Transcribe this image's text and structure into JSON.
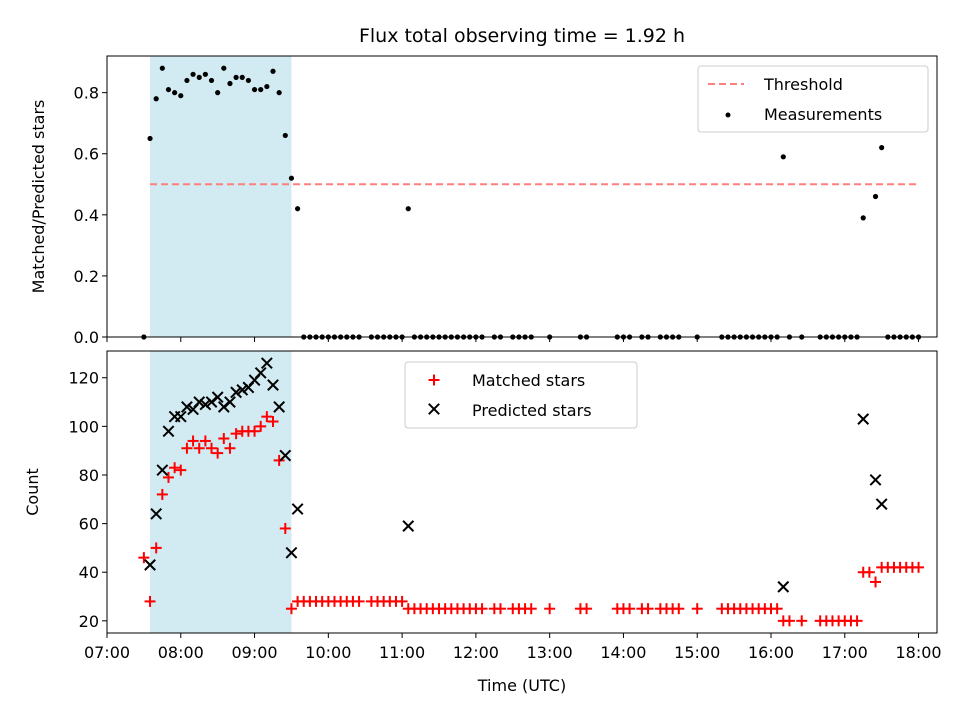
{
  "chart_data": [
    {
      "type": "scatter",
      "title": "Flux total observing time = 1.92 h",
      "ylabel": "Matched/Predicted stars",
      "xlabel": "",
      "xlim": [
        "07:00",
        "18:15"
      ],
      "ylim": [
        0,
        0.92
      ],
      "yticks": [
        0.0,
        0.2,
        0.4,
        0.6,
        0.8
      ],
      "ytick_labels": [
        "0.0",
        "0.2",
        "0.4",
        "0.6",
        "0.8"
      ],
      "legend_position": "top-right",
      "shaded_interval": {
        "start": "07:35",
        "end": "09:30",
        "color": "#add8e6"
      },
      "threshold": {
        "name": "Threshold",
        "value": 0.5,
        "x_start": "07:35",
        "x_end": "18:00",
        "color": "#ff7f7f"
      },
      "series": [
        {
          "name": "Measurements",
          "color": "#000000",
          "points": [
            [
              "07:30",
              0.0
            ],
            [
              "07:35",
              0.65
            ],
            [
              "07:40",
              0.78
            ],
            [
              "07:45",
              0.88
            ],
            [
              "07:50",
              0.81
            ],
            [
              "07:55",
              0.8
            ],
            [
              "08:00",
              0.79
            ],
            [
              "08:05",
              0.84
            ],
            [
              "08:10",
              0.86
            ],
            [
              "08:15",
              0.85
            ],
            [
              "08:20",
              0.86
            ],
            [
              "08:25",
              0.84
            ],
            [
              "08:30",
              0.8
            ],
            [
              "08:35",
              0.88
            ],
            [
              "08:40",
              0.83
            ],
            [
              "08:45",
              0.85
            ],
            [
              "08:50",
              0.85
            ],
            [
              "08:55",
              0.84
            ],
            [
              "09:00",
              0.81
            ],
            [
              "09:05",
              0.81
            ],
            [
              "09:10",
              0.82
            ],
            [
              "09:15",
              0.87
            ],
            [
              "09:20",
              0.8
            ],
            [
              "09:25",
              0.66
            ],
            [
              "09:30",
              0.52
            ],
            [
              "09:35",
              0.42
            ],
            [
              "09:40",
              0.0
            ],
            [
              "09:45",
              0.0
            ],
            [
              "09:50",
              0.0
            ],
            [
              "09:55",
              0.0
            ],
            [
              "10:00",
              0.0
            ],
            [
              "10:05",
              0.0
            ],
            [
              "10:10",
              0.0
            ],
            [
              "10:15",
              0.0
            ],
            [
              "10:20",
              0.0
            ],
            [
              "10:25",
              0.0
            ],
            [
              "10:35",
              0.0
            ],
            [
              "10:40",
              0.0
            ],
            [
              "10:45",
              0.0
            ],
            [
              "10:50",
              0.0
            ],
            [
              "10:55",
              0.0
            ],
            [
              "11:00",
              0.0
            ],
            [
              "11:05",
              0.42
            ],
            [
              "11:10",
              0.0
            ],
            [
              "11:15",
              0.0
            ],
            [
              "11:20",
              0.0
            ],
            [
              "11:25",
              0.0
            ],
            [
              "11:30",
              0.0
            ],
            [
              "11:35",
              0.0
            ],
            [
              "11:40",
              0.0
            ],
            [
              "11:45",
              0.0
            ],
            [
              "11:50",
              0.0
            ],
            [
              "11:55",
              0.0
            ],
            [
              "12:00",
              0.0
            ],
            [
              "12:05",
              0.0
            ],
            [
              "12:15",
              0.0
            ],
            [
              "12:20",
              0.0
            ],
            [
              "12:30",
              0.0
            ],
            [
              "12:35",
              0.0
            ],
            [
              "12:40",
              0.0
            ],
            [
              "12:45",
              0.0
            ],
            [
              "13:00",
              0.0
            ],
            [
              "13:25",
              0.0
            ],
            [
              "13:30",
              0.0
            ],
            [
              "13:55",
              0.0
            ],
            [
              "14:00",
              0.0
            ],
            [
              "14:05",
              0.0
            ],
            [
              "14:15",
              0.0
            ],
            [
              "14:20",
              0.0
            ],
            [
              "14:30",
              0.0
            ],
            [
              "14:35",
              0.0
            ],
            [
              "14:40",
              0.0
            ],
            [
              "14:45",
              0.0
            ],
            [
              "15:00",
              0.0
            ],
            [
              "15:20",
              0.0
            ],
            [
              "15:25",
              0.0
            ],
            [
              "15:30",
              0.0
            ],
            [
              "15:35",
              0.0
            ],
            [
              "15:40",
              0.0
            ],
            [
              "15:45",
              0.0
            ],
            [
              "15:50",
              0.0
            ],
            [
              "15:55",
              0.0
            ],
            [
              "16:00",
              0.0
            ],
            [
              "16:05",
              0.0
            ],
            [
              "16:10",
              0.59
            ],
            [
              "16:15",
              0.0
            ],
            [
              "16:25",
              0.0
            ],
            [
              "16:40",
              0.0
            ],
            [
              "16:45",
              0.0
            ],
            [
              "16:50",
              0.0
            ],
            [
              "16:55",
              0.0
            ],
            [
              "17:00",
              0.0
            ],
            [
              "17:05",
              0.0
            ],
            [
              "17:10",
              0.0
            ],
            [
              "17:15",
              0.39
            ],
            [
              "17:25",
              0.46
            ],
            [
              "17:30",
              0.62
            ],
            [
              "17:35",
              0.0
            ],
            [
              "17:40",
              0.0
            ],
            [
              "17:45",
              0.0
            ],
            [
              "17:50",
              0.0
            ],
            [
              "17:55",
              0.0
            ],
            [
              "18:00",
              0.0
            ]
          ]
        }
      ]
    },
    {
      "type": "scatter",
      "title": "",
      "xlabel": "Time (UTC)",
      "ylabel": "Count",
      "xlim": [
        "07:00",
        "18:15"
      ],
      "xticks": [
        "07:00",
        "08:00",
        "09:00",
        "10:00",
        "11:00",
        "12:00",
        "13:00",
        "14:00",
        "15:00",
        "16:00",
        "17:00",
        "18:00"
      ],
      "ylim": [
        15,
        131
      ],
      "yticks": [
        20,
        40,
        60,
        80,
        100,
        120
      ],
      "ytick_labels": [
        "20",
        "40",
        "60",
        "80",
        "100",
        "120"
      ],
      "legend_position": "top-center",
      "shaded_interval": {
        "start": "07:35",
        "end": "09:30",
        "color": "#add8e6"
      },
      "series": [
        {
          "name": "Matched stars",
          "marker": "+",
          "color": "#ff0000",
          "points": [
            [
              "07:30",
              46
            ],
            [
              "07:35",
              28
            ],
            [
              "07:40",
              50
            ],
            [
              "07:45",
              72
            ],
            [
              "07:50",
              79
            ],
            [
              "07:55",
              83
            ],
            [
              "08:00",
              82
            ],
            [
              "08:05",
              91
            ],
            [
              "08:10",
              94
            ],
            [
              "08:15",
              91
            ],
            [
              "08:20",
              94
            ],
            [
              "08:25",
              91
            ],
            [
              "08:30",
              89
            ],
            [
              "08:35",
              95
            ],
            [
              "08:40",
              91
            ],
            [
              "08:45",
              97
            ],
            [
              "08:50",
              98
            ],
            [
              "08:55",
              98
            ],
            [
              "09:00",
              98
            ],
            [
              "09:05",
              100
            ],
            [
              "09:10",
              104
            ],
            [
              "09:15",
              102
            ],
            [
              "09:20",
              86
            ],
            [
              "09:25",
              58
            ],
            [
              "09:30",
              25
            ],
            [
              "09:35",
              28
            ],
            [
              "09:40",
              28
            ],
            [
              "09:45",
              28
            ],
            [
              "09:50",
              28
            ],
            [
              "09:55",
              28
            ],
            [
              "10:00",
              28
            ],
            [
              "10:05",
              28
            ],
            [
              "10:10",
              28
            ],
            [
              "10:15",
              28
            ],
            [
              "10:20",
              28
            ],
            [
              "10:25",
              28
            ],
            [
              "10:35",
              28
            ],
            [
              "10:40",
              28
            ],
            [
              "10:45",
              28
            ],
            [
              "10:50",
              28
            ],
            [
              "10:55",
              28
            ],
            [
              "11:00",
              28
            ],
            [
              "11:05",
              25
            ],
            [
              "11:10",
              25
            ],
            [
              "11:15",
              25
            ],
            [
              "11:20",
              25
            ],
            [
              "11:25",
              25
            ],
            [
              "11:30",
              25
            ],
            [
              "11:35",
              25
            ],
            [
              "11:40",
              25
            ],
            [
              "11:45",
              25
            ],
            [
              "11:50",
              25
            ],
            [
              "11:55",
              25
            ],
            [
              "12:00",
              25
            ],
            [
              "12:05",
              25
            ],
            [
              "12:15",
              25
            ],
            [
              "12:20",
              25
            ],
            [
              "12:30",
              25
            ],
            [
              "12:35",
              25
            ],
            [
              "12:40",
              25
            ],
            [
              "12:45",
              25
            ],
            [
              "13:00",
              25
            ],
            [
              "13:25",
              25
            ],
            [
              "13:30",
              25
            ],
            [
              "13:55",
              25
            ],
            [
              "14:00",
              25
            ],
            [
              "14:05",
              25
            ],
            [
              "14:15",
              25
            ],
            [
              "14:20",
              25
            ],
            [
              "14:30",
              25
            ],
            [
              "14:35",
              25
            ],
            [
              "14:40",
              25
            ],
            [
              "14:45",
              25
            ],
            [
              "15:00",
              25
            ],
            [
              "15:20",
              25
            ],
            [
              "15:25",
              25
            ],
            [
              "15:30",
              25
            ],
            [
              "15:35",
              25
            ],
            [
              "15:40",
              25
            ],
            [
              "15:45",
              25
            ],
            [
              "15:50",
              25
            ],
            [
              "15:55",
              25
            ],
            [
              "16:00",
              25
            ],
            [
              "16:05",
              25
            ],
            [
              "16:10",
              20
            ],
            [
              "16:15",
              20
            ],
            [
              "16:25",
              20
            ],
            [
              "16:40",
              20
            ],
            [
              "16:45",
              20
            ],
            [
              "16:50",
              20
            ],
            [
              "16:55",
              20
            ],
            [
              "17:00",
              20
            ],
            [
              "17:05",
              20
            ],
            [
              "17:10",
              20
            ],
            [
              "17:15",
              40
            ],
            [
              "17:20",
              40
            ],
            [
              "17:25",
              36
            ],
            [
              "17:30",
              42
            ],
            [
              "17:35",
              42
            ],
            [
              "17:40",
              42
            ],
            [
              "17:45",
              42
            ],
            [
              "17:50",
              42
            ],
            [
              "17:55",
              42
            ],
            [
              "18:00",
              42
            ]
          ]
        },
        {
          "name": "Predicted stars",
          "marker": "x",
          "color": "#000000",
          "points": [
            [
              "07:35",
              43
            ],
            [
              "07:40",
              64
            ],
            [
              "07:45",
              82
            ],
            [
              "07:50",
              98
            ],
            [
              "07:55",
              104
            ],
            [
              "08:00",
              104
            ],
            [
              "08:05",
              108
            ],
            [
              "08:10",
              107
            ],
            [
              "08:15",
              110
            ],
            [
              "08:20",
              109
            ],
            [
              "08:25",
              110
            ],
            [
              "08:30",
              112
            ],
            [
              "08:35",
              108
            ],
            [
              "08:40",
              110
            ],
            [
              "08:45",
              114
            ],
            [
              "08:50",
              115
            ],
            [
              "08:55",
              116
            ],
            [
              "09:00",
              119
            ],
            [
              "09:05",
              122
            ],
            [
              "09:10",
              126
            ],
            [
              "09:15",
              117
            ],
            [
              "09:20",
              108
            ],
            [
              "09:25",
              88
            ],
            [
              "09:30",
              48
            ],
            [
              "09:35",
              66
            ],
            [
              "11:05",
              59
            ],
            [
              "16:10",
              34
            ],
            [
              "17:15",
              103
            ],
            [
              "17:25",
              78
            ],
            [
              "17:30",
              68
            ]
          ]
        }
      ]
    }
  ]
}
